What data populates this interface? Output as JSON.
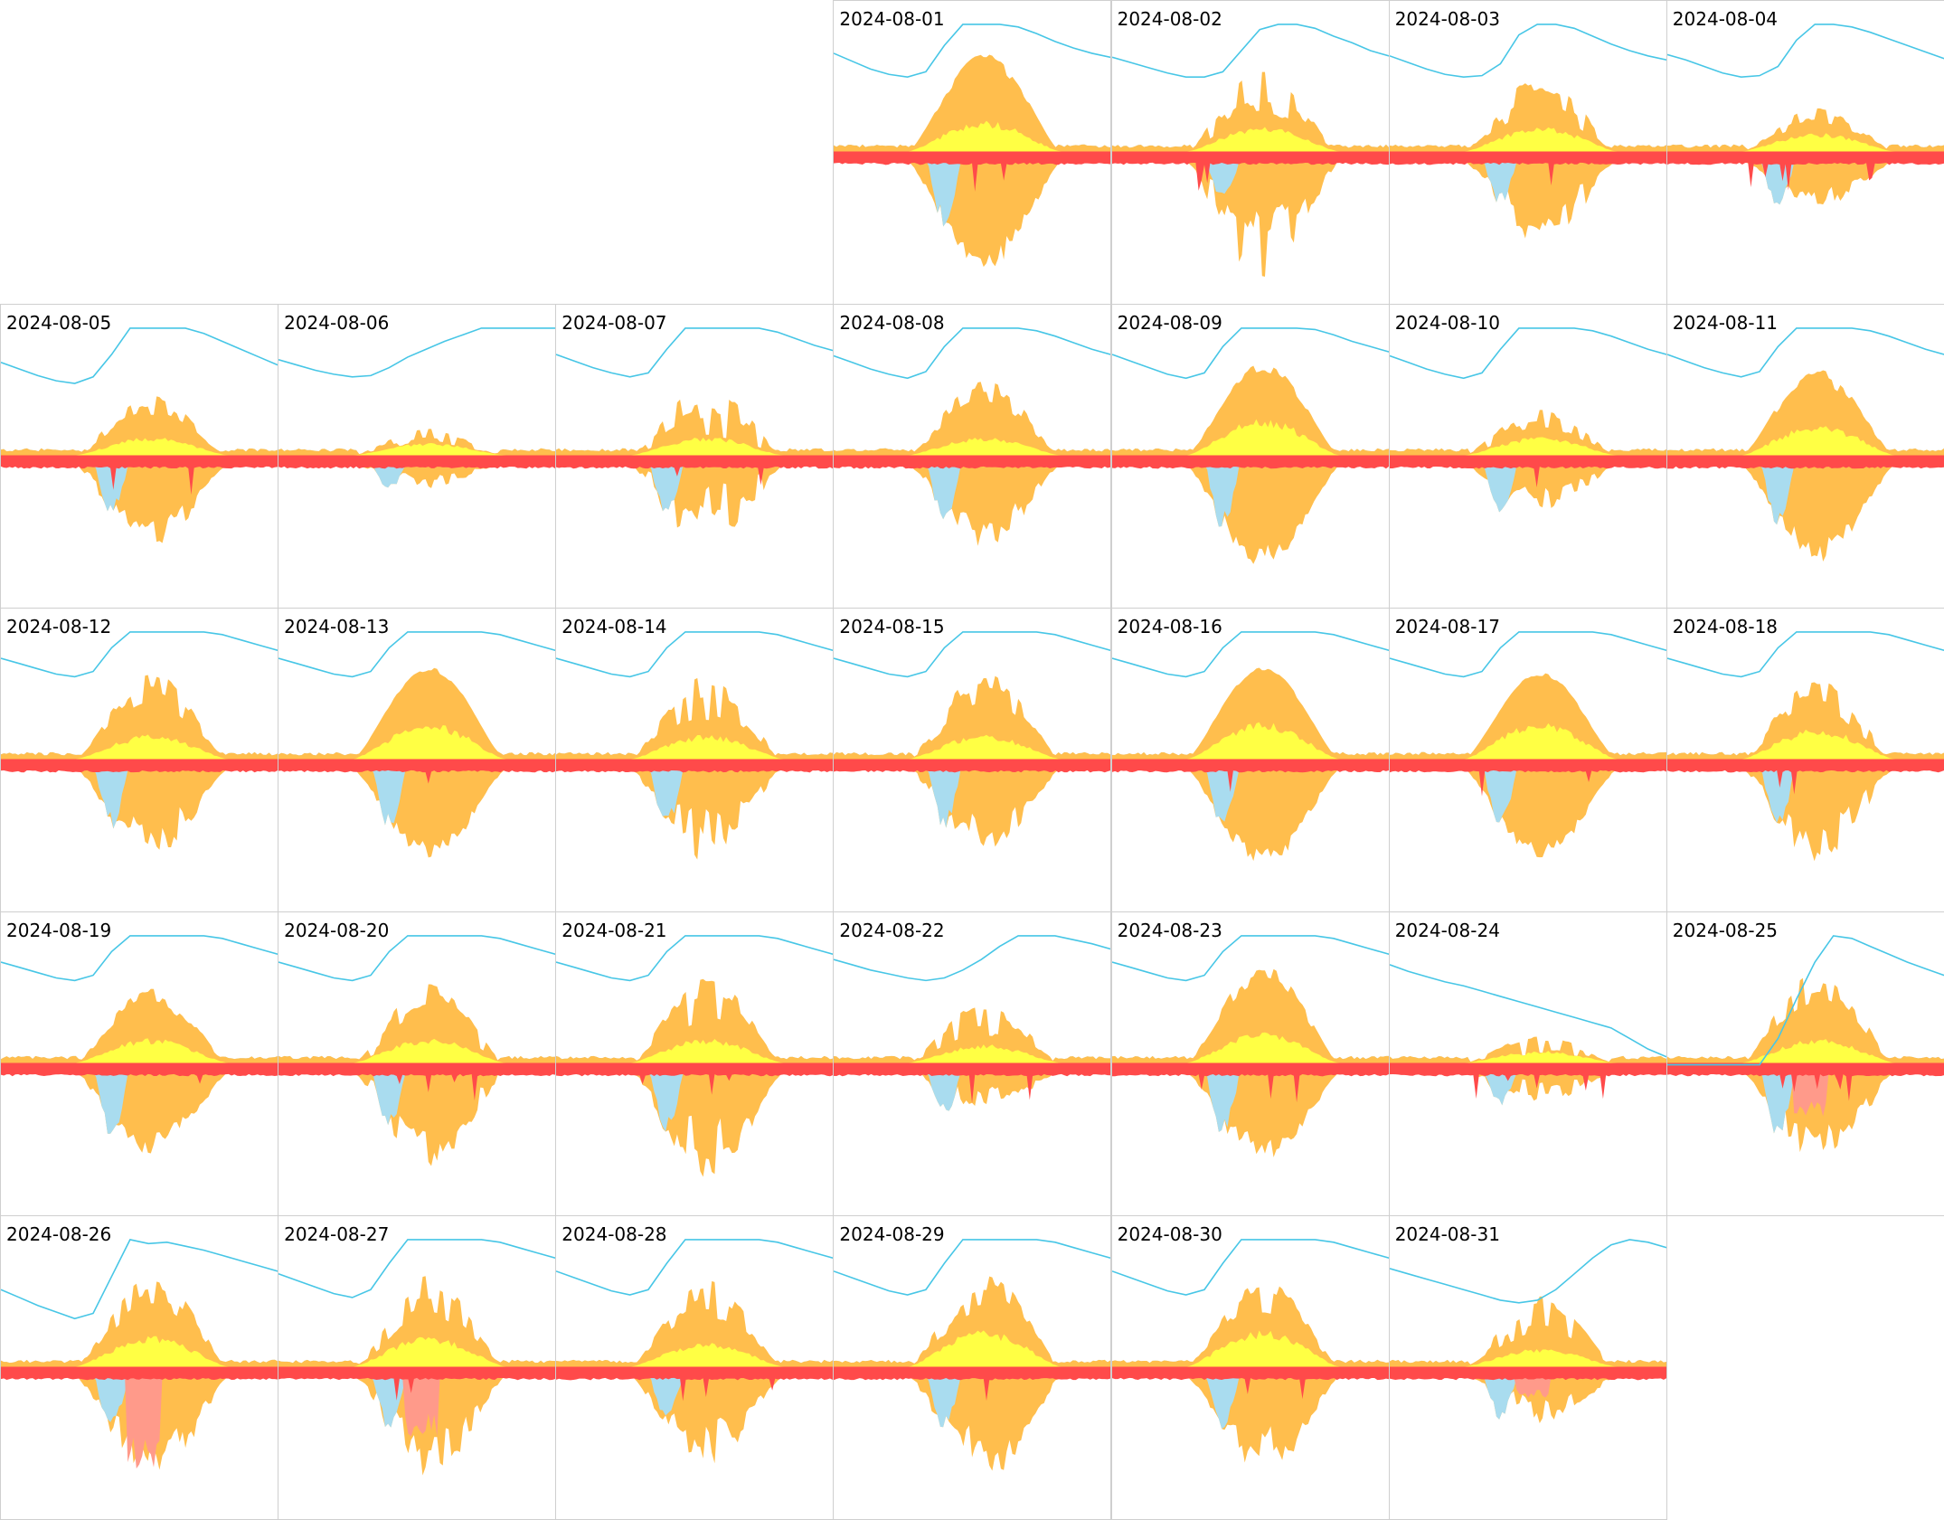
{
  "colors": {
    "solar_self": "#ffff44",
    "solar_total": "#ffbe4d",
    "grid": "#a9dcef",
    "consumption": "#ff4a4a",
    "battery_charge": "#ff9a8a",
    "battery_soc": "#47c6e6",
    "cell_border": "#cfcfcf"
  },
  "chart_data": {
    "type": "area",
    "layout": "calendar-month",
    "weekday_start": "monday",
    "units_note": "relative power per day; soc in percent",
    "days": [
      {
        "date": "2024-08-01",
        "solar_peak": 0.9,
        "solar_self": 0.25,
        "clouds": 0.1,
        "drop": 0.9,
        "grid_draw": 0.6,
        "cons_spike": 0.05,
        "batt": 0,
        "soc": [
          78,
          72,
          66,
          62,
          60,
          64,
          84,
          100,
          100,
          100,
          98,
          93,
          87,
          82,
          78,
          75
        ]
      },
      {
        "date": "2024-08-02",
        "solar_peak": 0.75,
        "solar_self": 0.2,
        "clouds": 0.55,
        "drop": 1.0,
        "grid_draw": 0.35,
        "cons_spike": 0.25,
        "batt": 0,
        "soc": [
          75,
          71,
          67,
          63,
          60,
          60,
          64,
          80,
          96,
          100,
          100,
          97,
          91,
          86,
          80,
          76
        ]
      },
      {
        "date": "2024-08-03",
        "solar_peak": 0.7,
        "solar_self": 0.2,
        "clouds": 0.6,
        "drop": 0.7,
        "grid_draw": 0.4,
        "cons_spike": 0.35,
        "batt": 0,
        "soc": [
          76,
          71,
          66,
          62,
          60,
          61,
          70,
          92,
          100,
          100,
          97,
          91,
          85,
          80,
          76,
          73
        ]
      },
      {
        "date": "2024-08-04",
        "solar_peak": 0.4,
        "solar_self": 0.15,
        "clouds": 0.4,
        "drop": 0.4,
        "grid_draw": 0.45,
        "cons_spike": 0.4,
        "batt": 0,
        "soc": [
          77,
          73,
          68,
          63,
          60,
          61,
          68,
          88,
          100,
          100,
          98,
          94,
          89,
          84,
          79,
          74
        ]
      },
      {
        "date": "2024-08-05",
        "solar_peak": 0.55,
        "solar_self": 0.15,
        "clouds": 0.45,
        "drop": 0.7,
        "grid_draw": 0.45,
        "cons_spike": 0.1,
        "batt": 0,
        "soc": [
          74,
          69,
          64,
          60,
          58,
          63,
          80,
          100,
          100,
          100,
          100,
          96,
          90,
          84,
          78,
          72
        ]
      },
      {
        "date": "2024-08-06",
        "solar_peak": 0.25,
        "solar_self": 0.1,
        "clouds": 0.6,
        "drop": 0.2,
        "grid_draw": 0.25,
        "cons_spike": 0.05,
        "batt": 0,
        "soc": [
          76,
          72,
          68,
          65,
          63,
          64,
          70,
          78,
          84,
          90,
          95,
          100,
          100,
          100,
          100,
          100
        ]
      },
      {
        "date": "2024-08-07",
        "solar_peak": 0.65,
        "solar_self": 0.15,
        "clouds": 0.75,
        "drop": 0.7,
        "grid_draw": 0.45,
        "cons_spike": 0.05,
        "batt": 0,
        "soc": [
          80,
          75,
          70,
          66,
          63,
          66,
          84,
          100,
          100,
          100,
          100,
          100,
          97,
          92,
          87,
          83
        ]
      },
      {
        "date": "2024-08-08",
        "solar_peak": 0.7,
        "solar_self": 0.15,
        "clouds": 0.35,
        "drop": 0.7,
        "grid_draw": 0.55,
        "cons_spike": 0.05,
        "batt": 0,
        "soc": [
          79,
          74,
          69,
          65,
          62,
          67,
          86,
          100,
          100,
          100,
          100,
          98,
          94,
          89,
          84,
          80
        ]
      },
      {
        "date": "2024-08-09",
        "solar_peak": 0.85,
        "solar_self": 0.3,
        "clouds": 0.1,
        "drop": 0.85,
        "grid_draw": 0.6,
        "cons_spike": 0.05,
        "batt": 0,
        "soc": [
          80,
          75,
          70,
          65,
          62,
          66,
          86,
          100,
          100,
          100,
          100,
          99,
          95,
          90,
          86,
          82
        ]
      },
      {
        "date": "2024-08-10",
        "solar_peak": 0.45,
        "solar_self": 0.15,
        "clouds": 0.55,
        "drop": 0.4,
        "grid_draw": 0.45,
        "cons_spike": 0.05,
        "batt": 0,
        "soc": [
          79,
          74,
          69,
          65,
          62,
          66,
          84,
          100,
          100,
          100,
          100,
          98,
          94,
          89,
          84,
          80
        ]
      },
      {
        "date": "2024-08-11",
        "solar_peak": 0.8,
        "solar_self": 0.25,
        "clouds": 0.2,
        "drop": 0.8,
        "grid_draw": 0.55,
        "cons_spike": 0.05,
        "batt": 0,
        "soc": [
          80,
          75,
          70,
          66,
          63,
          67,
          86,
          100,
          100,
          100,
          100,
          98,
          94,
          89,
          84,
          80
        ]
      },
      {
        "date": "2024-08-12",
        "solar_peak": 0.8,
        "solar_self": 0.2,
        "clouds": 0.4,
        "drop": 0.75,
        "grid_draw": 0.55,
        "cons_spike": 0.05,
        "batt": 0,
        "soc": [
          80,
          76,
          72,
          68,
          66,
          70,
          88,
          100,
          100,
          100,
          100,
          100,
          98,
          94,
          90,
          86
        ]
      },
      {
        "date": "2024-08-13",
        "solar_peak": 0.85,
        "solar_self": 0.3,
        "clouds": 0.05,
        "drop": 0.75,
        "grid_draw": 0.55,
        "cons_spike": 0.05,
        "batt": 0,
        "soc": [
          80,
          76,
          72,
          68,
          66,
          70,
          88,
          100,
          100,
          100,
          100,
          100,
          98,
          94,
          90,
          86
        ]
      },
      {
        "date": "2024-08-14",
        "solar_peak": 0.8,
        "solar_self": 0.2,
        "clouds": 0.55,
        "drop": 0.8,
        "grid_draw": 0.55,
        "cons_spike": 0.05,
        "batt": 0,
        "soc": [
          80,
          76,
          72,
          68,
          66,
          70,
          88,
          100,
          100,
          100,
          100,
          100,
          98,
          94,
          90,
          86
        ]
      },
      {
        "date": "2024-08-15",
        "solar_peak": 0.8,
        "solar_self": 0.2,
        "clouds": 0.5,
        "drop": 0.7,
        "grid_draw": 0.55,
        "cons_spike": 0.05,
        "batt": 0,
        "soc": [
          80,
          76,
          72,
          68,
          66,
          70,
          88,
          100,
          100,
          100,
          100,
          100,
          98,
          94,
          90,
          86
        ]
      },
      {
        "date": "2024-08-16",
        "solar_peak": 0.85,
        "solar_self": 0.3,
        "clouds": 0.05,
        "drop": 0.8,
        "grid_draw": 0.55,
        "cons_spike": 0.05,
        "batt": 0,
        "soc": [
          80,
          76,
          72,
          68,
          66,
          70,
          88,
          100,
          100,
          100,
          100,
          100,
          98,
          94,
          90,
          86
        ]
      },
      {
        "date": "2024-08-17",
        "solar_peak": 0.8,
        "solar_self": 0.3,
        "clouds": 0.05,
        "drop": 0.75,
        "grid_draw": 0.55,
        "cons_spike": 0.05,
        "batt": 0,
        "soc": [
          80,
          76,
          72,
          68,
          66,
          70,
          88,
          100,
          100,
          100,
          100,
          100,
          98,
          94,
          90,
          86
        ]
      },
      {
        "date": "2024-08-18",
        "solar_peak": 0.75,
        "solar_self": 0.25,
        "clouds": 0.5,
        "drop": 0.8,
        "grid_draw": 0.55,
        "cons_spike": 0.05,
        "batt": 0,
        "soc": [
          80,
          76,
          72,
          68,
          66,
          70,
          88,
          100,
          100,
          100,
          100,
          100,
          98,
          94,
          90,
          86
        ]
      },
      {
        "date": "2024-08-19",
        "solar_peak": 0.7,
        "solar_self": 0.2,
        "clouds": 0.25,
        "drop": 0.7,
        "grid_draw": 0.6,
        "cons_spike": 0.1,
        "batt": 0,
        "soc": [
          80,
          76,
          72,
          68,
          66,
          70,
          88,
          100,
          100,
          100,
          100,
          100,
          98,
          94,
          90,
          86
        ]
      },
      {
        "date": "2024-08-20",
        "solar_peak": 0.75,
        "solar_self": 0.2,
        "clouds": 0.7,
        "drop": 0.8,
        "grid_draw": 0.5,
        "cons_spike": 0.3,
        "batt": 0,
        "soc": [
          80,
          76,
          72,
          68,
          66,
          70,
          88,
          100,
          100,
          100,
          100,
          100,
          98,
          94,
          90,
          86
        ]
      },
      {
        "date": "2024-08-21",
        "solar_peak": 0.8,
        "solar_self": 0.2,
        "clouds": 0.55,
        "drop": 0.9,
        "grid_draw": 0.55,
        "cons_spike": 0.35,
        "batt": 0,
        "soc": [
          80,
          76,
          72,
          68,
          66,
          70,
          88,
          100,
          100,
          100,
          100,
          100,
          98,
          94,
          90,
          86
        ]
      },
      {
        "date": "2024-08-22",
        "solar_peak": 0.55,
        "solar_self": 0.15,
        "clouds": 0.6,
        "drop": 0.3,
        "grid_draw": 0.4,
        "cons_spike": 0.15,
        "batt": 0,
        "soc": [
          82,
          78,
          74,
          71,
          68,
          66,
          68,
          74,
          82,
          92,
          100,
          100,
          100,
          97,
          94,
          90
        ]
      },
      {
        "date": "2024-08-23",
        "solar_peak": 0.9,
        "solar_self": 0.25,
        "clouds": 0.2,
        "drop": 0.75,
        "grid_draw": 0.6,
        "cons_spike": 0.45,
        "batt": 0,
        "soc": [
          80,
          76,
          72,
          68,
          66,
          70,
          88,
          100,
          100,
          100,
          100,
          100,
          98,
          94,
          90,
          86
        ]
      },
      {
        "date": "2024-08-24",
        "solar_peak": 0.25,
        "solar_self": 0.1,
        "clouds": 0.7,
        "drop": 0.25,
        "grid_draw": 0.3,
        "cons_spike": 0.35,
        "batt": 0,
        "soc": [
          78,
          73,
          69,
          65,
          62,
          58,
          54,
          50,
          46,
          42,
          38,
          34,
          30,
          22,
          14,
          8
        ]
      },
      {
        "date": "2024-08-25",
        "solar_peak": 0.85,
        "solar_self": 0.2,
        "clouds": 0.35,
        "drop": 0.75,
        "grid_draw": 0.6,
        "cons_spike": 0.3,
        "batt": 0.4,
        "soc": [
          2,
          2,
          2,
          2,
          2,
          2,
          22,
          52,
          80,
          100,
          98,
          92,
          86,
          80,
          75,
          70
        ]
      },
      {
        "date": "2024-08-26",
        "solar_peak": 0.9,
        "solar_self": 0.25,
        "clouds": 0.45,
        "drop": 0.9,
        "grid_draw": 0.5,
        "cons_spike": 0.15,
        "batt": 0.85,
        "soc": [
          62,
          56,
          50,
          45,
          40,
          44,
          72,
          100,
          97,
          98,
          95,
          92,
          88,
          84,
          80,
          76
        ]
      },
      {
        "date": "2024-08-27",
        "solar_peak": 0.85,
        "solar_self": 0.25,
        "clouds": 0.55,
        "drop": 0.9,
        "grid_draw": 0.5,
        "cons_spike": 0.2,
        "batt": 0.55,
        "soc": [
          74,
          69,
          64,
          59,
          56,
          62,
          82,
          100,
          100,
          100,
          100,
          100,
          98,
          94,
          90,
          86
        ]
      },
      {
        "date": "2024-08-28",
        "solar_peak": 0.8,
        "solar_self": 0.2,
        "clouds": 0.45,
        "drop": 0.75,
        "grid_draw": 0.4,
        "cons_spike": 0.25,
        "batt": 0,
        "soc": [
          76,
          71,
          66,
          61,
          58,
          62,
          82,
          100,
          100,
          100,
          100,
          100,
          98,
          94,
          90,
          86
        ]
      },
      {
        "date": "2024-08-29",
        "solar_peak": 0.9,
        "solar_self": 0.3,
        "clouds": 0.5,
        "drop": 0.9,
        "grid_draw": 0.5,
        "cons_spike": 0.2,
        "batt": 0,
        "soc": [
          76,
          71,
          66,
          61,
          58,
          62,
          82,
          100,
          100,
          100,
          100,
          100,
          98,
          94,
          90,
          86
        ]
      },
      {
        "date": "2024-08-30",
        "solar_peak": 0.9,
        "solar_self": 0.3,
        "clouds": 0.45,
        "drop": 0.9,
        "grid_draw": 0.5,
        "cons_spike": 0.25,
        "batt": 0,
        "soc": [
          76,
          71,
          66,
          61,
          58,
          62,
          82,
          100,
          100,
          100,
          100,
          100,
          98,
          94,
          90,
          86
        ]
      },
      {
        "date": "2024-08-31",
        "solar_peak": 0.65,
        "solar_self": 0.15,
        "clouds": 0.55,
        "drop": 0.4,
        "grid_draw": 0.4,
        "cons_spike": 0.05,
        "batt": 0.2,
        "soc": [
          78,
          74,
          70,
          66,
          62,
          58,
          54,
          52,
          54,
          62,
          74,
          86,
          96,
          100,
          98,
          94
        ]
      }
    ]
  }
}
